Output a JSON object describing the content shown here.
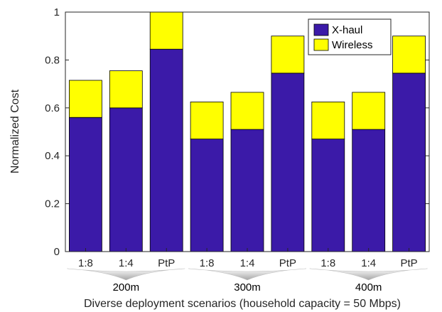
{
  "chart_data": {
    "type": "bar",
    "stacked": true,
    "categories": [
      "1:8",
      "1:4",
      "PtP",
      "1:8",
      "1:4",
      "PtP",
      "1:8",
      "1:4",
      "PtP"
    ],
    "groups": [
      "200m",
      "300m",
      "400m"
    ],
    "series": [
      {
        "name": "X-haul",
        "color": "#3b1aa8",
        "values": [
          0.56,
          0.6,
          0.845,
          0.47,
          0.51,
          0.745,
          0.47,
          0.51,
          0.745
        ]
      },
      {
        "name": "Wireless",
        "color": "#ffff00",
        "values": [
          0.155,
          0.155,
          0.155,
          0.155,
          0.155,
          0.155,
          0.155,
          0.155,
          0.155
        ]
      }
    ],
    "ylabel": "Normalized Cost",
    "xlabel": "Diverse deployment scenarios (household capacity = 50 Mbps)",
    "ylim": [
      0,
      1
    ],
    "yticks": [
      "0",
      "0.2",
      "0.4",
      "0.6",
      "0.8",
      "1"
    ],
    "legend_position": "top-right",
    "grid": false
  }
}
